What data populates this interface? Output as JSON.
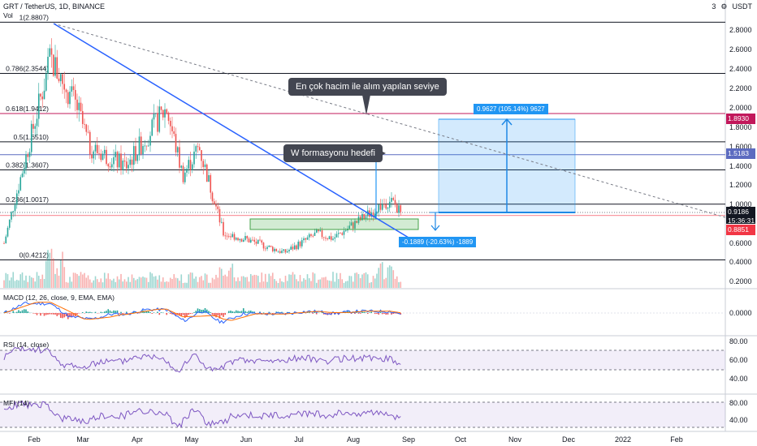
{
  "header": {
    "symbol_title": "GRT / TetherUS, 1D, BINANCE",
    "volume_label": "Vol",
    "currency": "USDT",
    "settings_icon": "gear-icon",
    "scale_toggle": "3"
  },
  "price_axis": {
    "ticks": [
      "2.8000",
      "2.6000",
      "2.4000",
      "2.2000",
      "2.0000",
      "1.8000",
      "1.6000",
      "1.4000",
      "1.2000",
      "1.0000",
      "0.6000",
      "0.4000",
      "0.2000"
    ],
    "ylim": [
      0.15,
      3.0
    ]
  },
  "price_tags": {
    "r1": {
      "text": "1.8930",
      "color": "#c2185b"
    },
    "r2": {
      "text": "1.5183",
      "color": "#5c6bc0"
    },
    "current": {
      "text": "0.9186",
      "color": "#131722"
    },
    "countdown": {
      "text": "15:36:31",
      "color": "#131722"
    },
    "low": {
      "text": "0.8851",
      "color": "#f23645"
    }
  },
  "fib_levels": [
    {
      "label": "1(2.8807)",
      "value": 2.8807,
      "color": "#131722"
    },
    {
      "label": "0.786(2.3544)",
      "value": 2.3544,
      "color": "#131722"
    },
    {
      "label": "0.618(1.9412)",
      "value": 1.9412,
      "color": "#c2185b"
    },
    {
      "label": "0.5(1.6510)",
      "value": 1.651,
      "color": "#131722"
    },
    {
      "label": "0.382(1.3607)",
      "value": 1.3607,
      "color": "#131722"
    },
    {
      "label": "0.236(1.0017)",
      "value": 1.0017,
      "color": "#131722"
    },
    {
      "label": "0(0.4212)",
      "value": 0.4212,
      "color": "#131722"
    }
  ],
  "annotations": {
    "callout_volume": "En çok hacim ile alım yapılan seviye",
    "callout_w": "W formasyonu hedefi",
    "target_box_label": "0.9627 (105.14%) 9627",
    "drop_label": "-0.1889 (-20.63%) -1889"
  },
  "time_axis": {
    "labels": [
      "Feb",
      "Mar",
      "Apr",
      "May",
      "Jun",
      "Jul",
      "Aug",
      "Sep",
      "Oct",
      "Nov",
      "Dec",
      "2022",
      "Feb"
    ]
  },
  "macd": {
    "title": "MACD (12, 26, close, 9, EMA, EMA)",
    "ticks": [
      "0.0000"
    ]
  },
  "rsi": {
    "title": "RSI (14, close)",
    "ticks": [
      "80.00",
      "60.00",
      "40.00"
    ]
  },
  "mfi": {
    "title": "MFI (14)",
    "ticks": [
      "80.00",
      "40.00"
    ]
  },
  "chart_data": {
    "type": "candlestick",
    "title": "GRT / TetherUS, 1D, BINANCE",
    "ylim": [
      0.15,
      3.0
    ],
    "x_range": [
      "Jan 2021",
      "Feb 2022"
    ],
    "approx_close_path": [
      {
        "date": "Jan",
        "value": 0.6
      },
      {
        "date": "Feb mid",
        "value": 2.5
      },
      {
        "date": "Feb end",
        "value": 2.0
      },
      {
        "date": "Mar",
        "value": 1.6
      },
      {
        "date": "Mar end",
        "value": 1.4
      },
      {
        "date": "Apr mid",
        "value": 2.0
      },
      {
        "date": "Apr end",
        "value": 1.3
      },
      {
        "date": "May mid",
        "value": 1.6
      },
      {
        "date": "May end",
        "value": 0.7
      },
      {
        "date": "Jun",
        "value": 0.65
      },
      {
        "date": "Jul",
        "value": 0.5
      },
      {
        "date": "Jul end",
        "value": 0.7
      },
      {
        "date": "Aug",
        "value": 0.65
      },
      {
        "date": "Aug end",
        "value": 1.05
      },
      {
        "date": "Sep",
        "value": 0.92
      }
    ],
    "rsi_levels": [
      70,
      50,
      30
    ],
    "mfi_levels": [
      80,
      20
    ]
  }
}
